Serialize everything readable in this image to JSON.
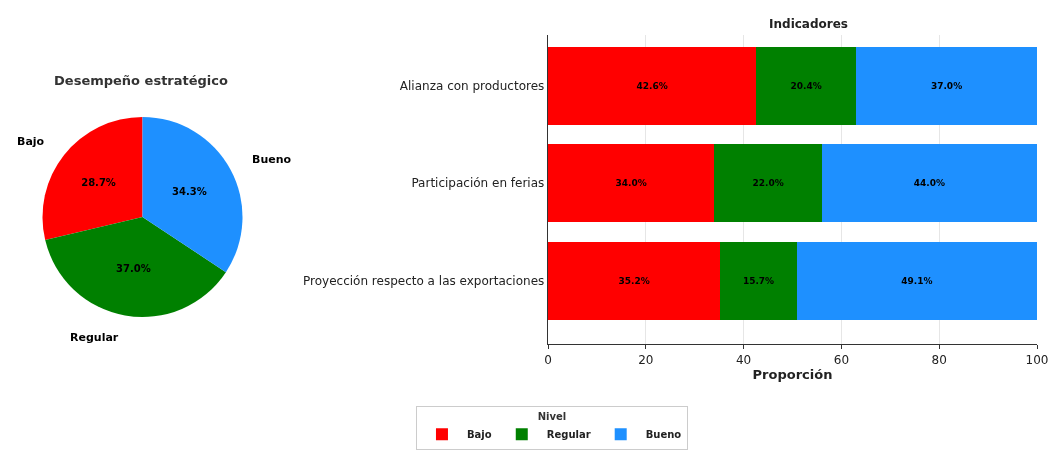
{
  "chart_data": [
    {
      "type": "pie",
      "title": "Desempeño estratégico",
      "categories": [
        "Bajo",
        "Regular",
        "Bueno"
      ],
      "values": [
        28.7,
        37.0,
        34.3
      ],
      "colors": [
        "#ff0000",
        "#008000",
        "#1e90ff"
      ],
      "value_labels": [
        "28.7%",
        "37.0%",
        "34.3%"
      ]
    },
    {
      "type": "bar",
      "title": "Indicadores",
      "xlabel": "Proporción",
      "orientation": "horizontal",
      "stacked": true,
      "categories": [
        "Alianza con productores",
        "Participación en ferias",
        "Proyección respecto a las exportaciones"
      ],
      "series": [
        {
          "name": "Bajo",
          "color": "#ff0000",
          "values": [
            42.6,
            34.0,
            35.2
          ],
          "value_labels": [
            "42.6%",
            "34.0%",
            "35.2%"
          ]
        },
        {
          "name": "Regular",
          "color": "#008000",
          "values": [
            20.4,
            22.0,
            15.7
          ],
          "value_labels": [
            "20.4%",
            "22.0%",
            "15.7%"
          ]
        },
        {
          "name": "Bueno",
          "color": "#1e90ff",
          "values": [
            37.0,
            44.0,
            49.1
          ],
          "value_labels": [
            "37.0%",
            "44.0%",
            "49.1%"
          ]
        }
      ],
      "xlim": [
        0,
        100
      ],
      "xticks": [
        0,
        20,
        40,
        60,
        80,
        100
      ],
      "grid": "x",
      "legend": "bottom",
      "legend_title": "Nivel"
    }
  ]
}
